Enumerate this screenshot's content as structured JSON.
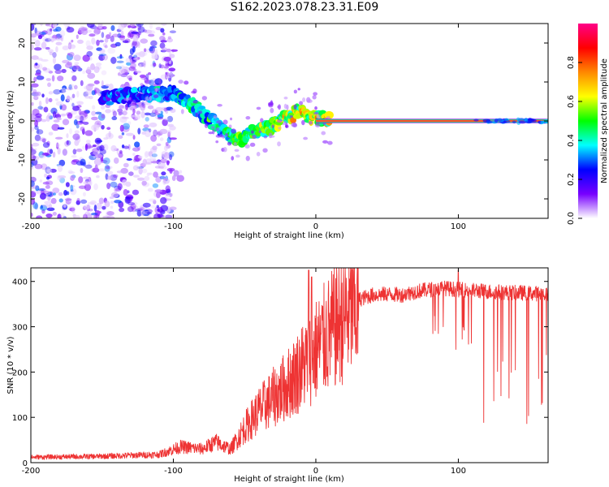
{
  "title": "S162.2023.078.23.31.E09",
  "chart_data": [
    {
      "type": "heatmap",
      "xlabel": "Height of straight line (km)",
      "ylabel": "Frequency (Hz)",
      "xlim": [
        -200,
        163
      ],
      "ylim": [
        -25,
        25
      ],
      "xticks": [
        -200,
        -100,
        0,
        100
      ],
      "yticks": [
        -20,
        -10,
        0,
        10,
        20
      ],
      "colorbar": {
        "label": "Normalized spectral amplitude",
        "range": [
          0,
          1
        ],
        "ticks": [
          0.0,
          0.2,
          0.4,
          0.6,
          0.8
        ],
        "colormap": [
          "#ffffff",
          "#7700ff",
          "#0000ff",
          "#00ffff",
          "#00ff00",
          "#ffff00",
          "#ff8800",
          "#ff0000",
          "#ff0088"
        ]
      },
      "ridge": [
        {
          "x": -145,
          "y": 6
        },
        {
          "x": -120,
          "y": 7
        },
        {
          "x": -100,
          "y": 7
        },
        {
          "x": -90,
          "y": 5
        },
        {
          "x": -80,
          "y": 2
        },
        {
          "x": -70,
          "y": -1
        },
        {
          "x": -60,
          "y": -4
        },
        {
          "x": -52,
          "y": -5
        },
        {
          "x": -45,
          "y": -3
        },
        {
          "x": -35,
          "y": -2
        },
        {
          "x": -25,
          "y": 0
        },
        {
          "x": -18,
          "y": 1
        },
        {
          "x": -12,
          "y": 3
        },
        {
          "x": -8,
          "y": 1
        },
        {
          "x": 0,
          "y": 1
        },
        {
          "x": 10,
          "y": 0
        },
        {
          "x": 163,
          "y": 0
        }
      ]
    },
    {
      "type": "line",
      "xlabel": "Height of straight line (km)",
      "ylabel": "SNR (10 * v/v)",
      "xlim": [
        -200,
        163
      ],
      "ylim": [
        0,
        430
      ],
      "xticks": [
        -200,
        -100,
        0,
        100
      ],
      "yticks": [
        0,
        100,
        200,
        300,
        400
      ],
      "series": [
        {
          "color": "#ee3333",
          "envelope": [
            {
              "x": -200,
              "y": 12
            },
            {
              "x": -150,
              "y": 14
            },
            {
              "x": -110,
              "y": 18
            },
            {
              "x": -95,
              "y": 35
            },
            {
              "x": -80,
              "y": 30
            },
            {
              "x": -70,
              "y": 45
            },
            {
              "x": -60,
              "y": 30
            },
            {
              "x": -50,
              "y": 80
            },
            {
              "x": -40,
              "y": 120
            },
            {
              "x": -30,
              "y": 150
            },
            {
              "x": -20,
              "y": 180
            },
            {
              "x": -10,
              "y": 220
            },
            {
              "x": 0,
              "y": 260
            },
            {
              "x": 10,
              "y": 300
            },
            {
              "x": 20,
              "y": 340
            },
            {
              "x": 30,
              "y": 360
            },
            {
              "x": 40,
              "y": 370
            },
            {
              "x": 50,
              "y": 372
            },
            {
              "x": 60,
              "y": 370
            },
            {
              "x": 70,
              "y": 378
            },
            {
              "x": 80,
              "y": 382
            },
            {
              "x": 90,
              "y": 385
            },
            {
              "x": 100,
              "y": 382
            },
            {
              "x": 110,
              "y": 380
            },
            {
              "x": 120,
              "y": 378
            },
            {
              "x": 130,
              "y": 376
            },
            {
              "x": 140,
              "y": 375
            },
            {
              "x": 150,
              "y": 374
            },
            {
              "x": 163,
              "y": 372
            }
          ],
          "peaks": [
            {
              "x": -5,
              "y": 425
            },
            {
              "x": -3,
              "y": 410
            },
            {
              "x": 100,
              "y": 425
            }
          ]
        }
      ]
    }
  ]
}
